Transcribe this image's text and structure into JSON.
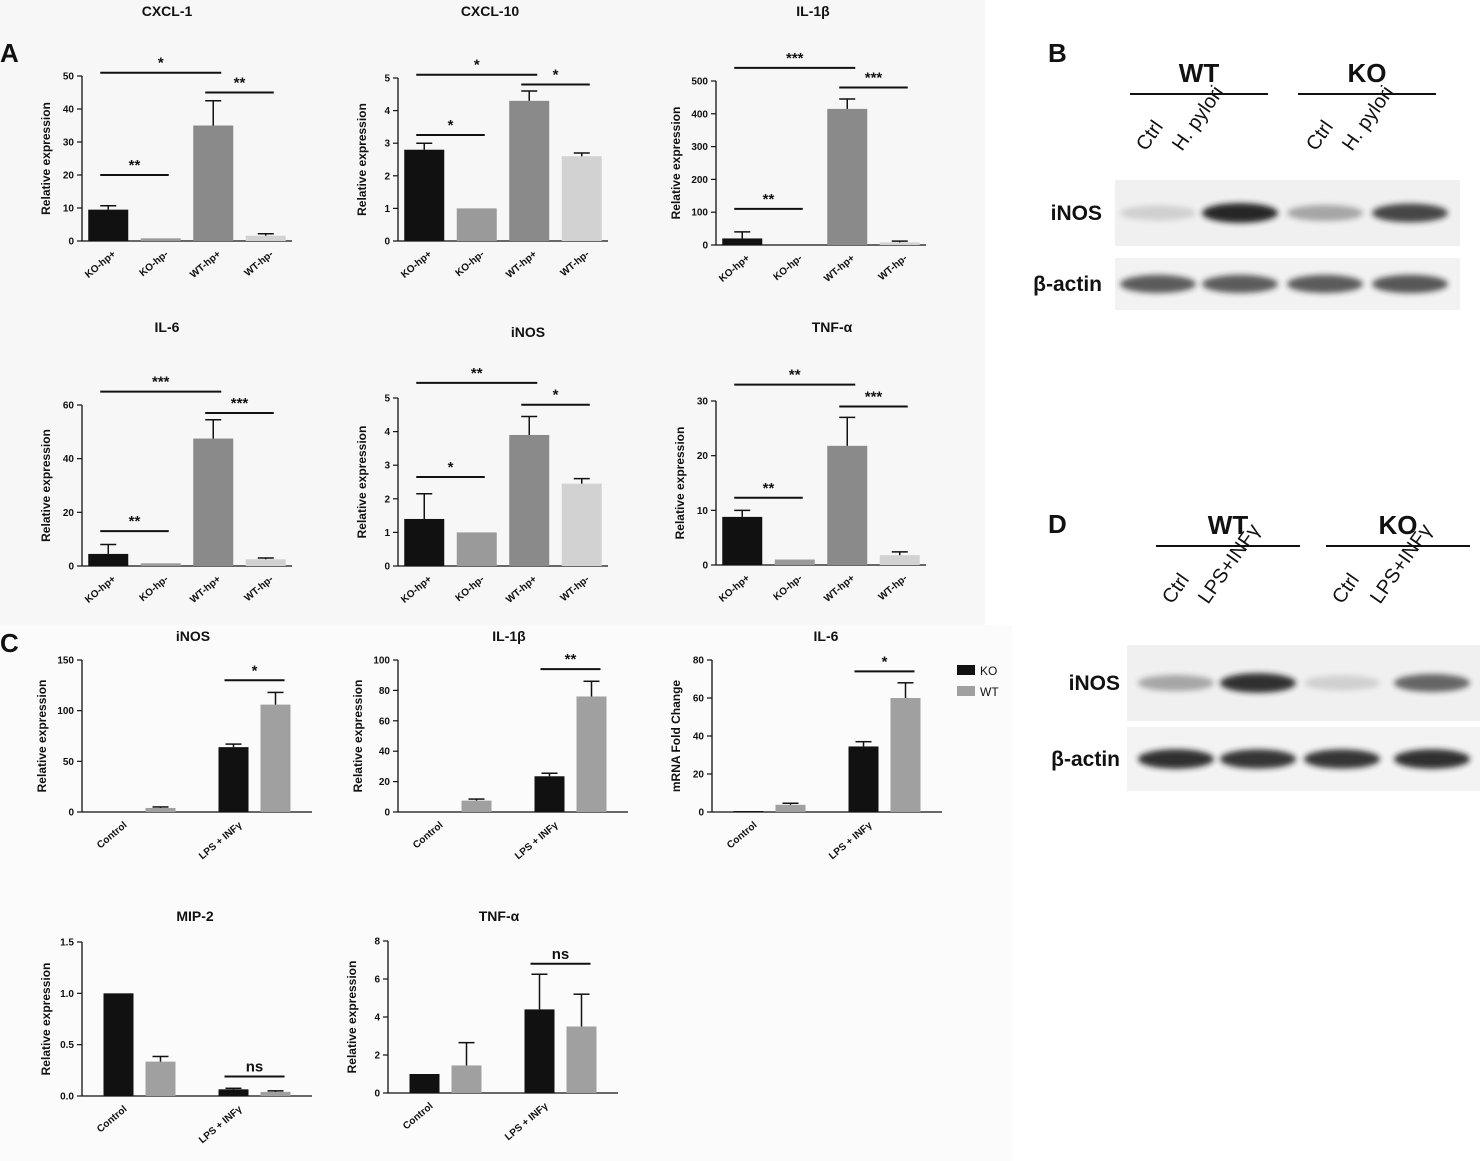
{
  "panels": {
    "A": "A",
    "B": "B",
    "C": "C",
    "D": "D"
  },
  "colors": {
    "ko_hp_pos": "#111111",
    "ko_hp_neg": "#9a9a9a",
    "wt_hp_pos": "#8a8a8a",
    "wt_hp_neg": "#d2d2d2",
    "ko": "#111111",
    "wt": "#a0a0a0"
  },
  "legend": {
    "ko": "KO",
    "wt": "WT"
  },
  "chart_data": [
    {
      "panel": "A",
      "type": "bar",
      "title": "CXCL-1",
      "ylabel": "Relative expression",
      "categories": [
        "KO-hp+",
        "KO-hp-",
        "WT-hp+",
        "WT-hp-"
      ],
      "values": [
        9.5,
        0.8,
        35,
        1.6
      ],
      "errors": [
        1.2,
        0,
        7.5,
        0.6
      ],
      "ylim": [
        0,
        50
      ],
      "yticks": [
        0,
        10,
        20,
        30,
        40,
        50
      ],
      "brackets": [
        {
          "from": 0,
          "to": 2,
          "label": "*",
          "y": 51
        },
        {
          "from": 0,
          "to": 1,
          "label": "**",
          "y": 20
        },
        {
          "from": 2,
          "to": 3,
          "label": "**",
          "y": 45
        }
      ]
    },
    {
      "panel": "A",
      "type": "bar",
      "title": "CXCL-10",
      "ylabel": "Relative expression",
      "categories": [
        "KO-hp+",
        "KO-hp-",
        "WT-hp+",
        "WT-hp-"
      ],
      "values": [
        2.8,
        1.0,
        4.3,
        2.6
      ],
      "errors": [
        0.2,
        0,
        0.3,
        0.1
      ],
      "ylim": [
        0,
        5
      ],
      "yticks": [
        0,
        1,
        2,
        3,
        4,
        5
      ],
      "brackets": [
        {
          "from": 0,
          "to": 2,
          "label": "*",
          "y": 5.1
        },
        {
          "from": 0,
          "to": 1,
          "label": "*",
          "y": 3.25
        },
        {
          "from": 2,
          "to": 3,
          "label": "*",
          "y": 4.8
        }
      ]
    },
    {
      "panel": "A",
      "type": "bar",
      "title": "IL-1β",
      "ylabel": "Relative expression",
      "categories": [
        "KO-hp+",
        "KO-hp-",
        "WT-hp+",
        "WT-hp-"
      ],
      "values": [
        20,
        0,
        415,
        8
      ],
      "errors": [
        20,
        0,
        30,
        4
      ],
      "ylim": [
        0,
        500
      ],
      "yticks": [
        0,
        100,
        200,
        300,
        400,
        500
      ],
      "brackets": [
        {
          "from": 0,
          "to": 2,
          "label": "***",
          "y": 540
        },
        {
          "from": 0,
          "to": 1,
          "label": "**",
          "y": 110
        },
        {
          "from": 2,
          "to": 3,
          "label": "***",
          "y": 480
        }
      ]
    },
    {
      "panel": "A",
      "type": "bar",
      "title": "IL-6",
      "ylabel": "Relative expression",
      "categories": [
        "KO-hp+",
        "KO-hp-",
        "WT-hp+",
        "WT-hp-"
      ],
      "values": [
        4.5,
        1.0,
        47.5,
        2.5
      ],
      "errors": [
        3.5,
        0,
        7,
        0.5
      ],
      "ylim": [
        0,
        60
      ],
      "yticks": [
        0,
        20,
        40,
        60
      ],
      "brackets": [
        {
          "from": 0,
          "to": 2,
          "label": "***",
          "y": 65
        },
        {
          "from": 0,
          "to": 1,
          "label": "**",
          "y": 13
        },
        {
          "from": 2,
          "to": 3,
          "label": "***",
          "y": 57
        }
      ]
    },
    {
      "panel": "A",
      "type": "bar",
      "title": "iNOS",
      "ylabel": "Relative expression",
      "categories": [
        "KO-hp+",
        "KO-hp-",
        "WT-hp+",
        "WT-hp-"
      ],
      "values": [
        1.4,
        1.0,
        3.9,
        2.45
      ],
      "errors": [
        0.75,
        0,
        0.55,
        0.15
      ],
      "ylim": [
        0,
        5
      ],
      "yticks": [
        0,
        1,
        2,
        3,
        4,
        5
      ],
      "brackets": [
        {
          "from": 0,
          "to": 2,
          "label": "**",
          "y": 5.45
        },
        {
          "from": 0,
          "to": 1,
          "label": "*",
          "y": 2.65
        },
        {
          "from": 2,
          "to": 3,
          "label": "*",
          "y": 4.8
        }
      ]
    },
    {
      "panel": "A",
      "type": "bar",
      "title": "TNF-α",
      "ylabel": "Relative expression",
      "categories": [
        "KO-hp+",
        "KO-hp-",
        "WT-hp+",
        "WT-hp-"
      ],
      "values": [
        8.8,
        1.0,
        21.8,
        1.8
      ],
      "errors": [
        1.2,
        0,
        5.2,
        0.6
      ],
      "ylim": [
        0,
        30
      ],
      "yticks": [
        0,
        10,
        20,
        30
      ],
      "brackets": [
        {
          "from": 0,
          "to": 2,
          "label": "**",
          "y": 33
        },
        {
          "from": 0,
          "to": 1,
          "label": "**",
          "y": 12.3
        },
        {
          "from": 2,
          "to": 3,
          "label": "***",
          "y": 29
        }
      ]
    },
    {
      "panel": "C",
      "type": "bar",
      "title": "iNOS",
      "ylabel": "Relative expression",
      "categories": [
        "Control",
        "LPS + INFγ"
      ],
      "series": [
        {
          "name": "KO",
          "values": [
            0.5,
            64
          ],
          "errors": [
            0,
            3
          ]
        },
        {
          "name": "WT",
          "values": [
            4,
            106
          ],
          "errors": [
            1,
            12
          ]
        }
      ],
      "ylim": [
        0,
        150
      ],
      "yticks": [
        0,
        50,
        100,
        150
      ],
      "brackets": [
        {
          "group": 1,
          "label": "*",
          "y": 130
        }
      ]
    },
    {
      "panel": "C",
      "type": "bar",
      "title": "IL-1β",
      "ylabel": "Relative expression",
      "categories": [
        "Control",
        "LPS + INFγ"
      ],
      "series": [
        {
          "name": "KO",
          "values": [
            0.3,
            23.5
          ],
          "errors": [
            0,
            2
          ]
        },
        {
          "name": "WT",
          "values": [
            7.5,
            76
          ],
          "errors": [
            1,
            10
          ]
        }
      ],
      "ylim": [
        0,
        100
      ],
      "yticks": [
        0,
        20,
        40,
        60,
        80,
        100
      ],
      "brackets": [
        {
          "group": 1,
          "label": "**",
          "y": 94
        }
      ]
    },
    {
      "panel": "C",
      "type": "bar",
      "title": "IL-6",
      "ylabel": "mRNA Fold Change",
      "categories": [
        "Control",
        "LPS + INFγ"
      ],
      "series": [
        {
          "name": "KO",
          "values": [
            0.5,
            34.5
          ],
          "errors": [
            0,
            2.5
          ]
        },
        {
          "name": "WT",
          "values": [
            3.8,
            60
          ],
          "errors": [
            0.8,
            8
          ]
        }
      ],
      "ylim": [
        0,
        80
      ],
      "yticks": [
        0,
        20,
        40,
        60,
        80
      ],
      "brackets": [
        {
          "group": 1,
          "label": "*",
          "y": 74
        }
      ]
    },
    {
      "panel": "C",
      "type": "bar",
      "title": "MIP-2",
      "ylabel": "Relative expression",
      "categories": [
        "Control",
        "LPS + INFγ"
      ],
      "series": [
        {
          "name": "KO",
          "values": [
            1.0,
            0.065
          ],
          "errors": [
            0,
            0.01
          ]
        },
        {
          "name": "WT",
          "values": [
            0.335,
            0.04
          ],
          "errors": [
            0.05,
            0.01
          ]
        }
      ],
      "ylim": [
        0,
        1.5
      ],
      "yticks": [
        "0.0",
        "0.5",
        "1.0",
        "1.5"
      ],
      "brackets": [
        {
          "group": 1,
          "label": "ns",
          "y": 0.19
        }
      ]
    },
    {
      "panel": "C",
      "type": "bar",
      "title": "TNF-α",
      "ylabel": "Relative expression",
      "categories": [
        "Control",
        "LPS + INFγ"
      ],
      "series": [
        {
          "name": "KO",
          "values": [
            1.0,
            4.4
          ],
          "errors": [
            0,
            1.85
          ]
        },
        {
          "name": "WT",
          "values": [
            1.45,
            3.5
          ],
          "errors": [
            1.2,
            1.7
          ]
        }
      ],
      "ylim": [
        0,
        8
      ],
      "yticks": [
        0,
        2,
        4,
        6,
        8
      ],
      "brackets": [
        {
          "group": 1,
          "label": "ns",
          "y": 6.8
        }
      ]
    }
  ],
  "blots": {
    "B": {
      "groups": [
        "WT",
        "KO"
      ],
      "lanes": [
        "Ctrl",
        "H. pylori",
        "Ctrl",
        "H. pylori"
      ],
      "rows": [
        "iNOS",
        "β-actin"
      ],
      "intensities": {
        "iNOS": [
          0.15,
          0.95,
          0.35,
          0.8
        ],
        "β-actin": [
          0.7,
          0.7,
          0.7,
          0.72
        ]
      }
    },
    "D": {
      "groups": [
        "WT",
        "KO"
      ],
      "lanes": [
        "Ctrl",
        "LPS+INFγ",
        "Ctrl",
        "LPS+INFγ"
      ],
      "rows": [
        "iNOS",
        "β-actin"
      ],
      "intensities": {
        "iNOS": [
          0.35,
          0.9,
          0.15,
          0.65
        ],
        "β-actin": [
          0.9,
          0.88,
          0.88,
          0.9
        ]
      }
    }
  }
}
